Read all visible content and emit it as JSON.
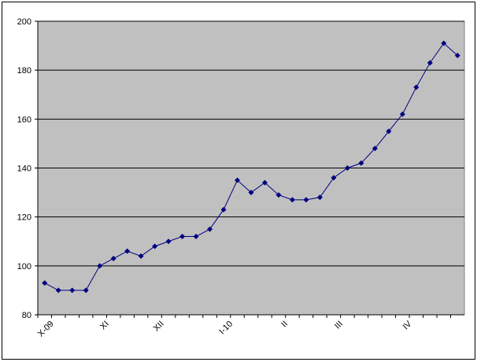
{
  "chart_data": {
    "type": "line",
    "categories": [
      "X-09",
      null,
      null,
      null,
      "XI",
      null,
      null,
      null,
      "XII",
      null,
      null,
      null,
      null,
      "I-10",
      null,
      null,
      null,
      "II",
      null,
      null,
      null,
      "III",
      null,
      null,
      null,
      null,
      "IV",
      null,
      null,
      null,
      null
    ],
    "series": [
      {
        "color": "#000080",
        "values": [
          93,
          90,
          90,
          90,
          100,
          103,
          106,
          104,
          108,
          110,
          112,
          112,
          115,
          123,
          135,
          130,
          134,
          129,
          127,
          127,
          128,
          136,
          140,
          142,
          148,
          155,
          162,
          173,
          183,
          191,
          186
        ]
      }
    ],
    "ylim": [
      80,
      200
    ],
    "yticks": [
      80,
      100,
      120,
      140,
      160,
      180,
      200
    ],
    "grid": true
  }
}
